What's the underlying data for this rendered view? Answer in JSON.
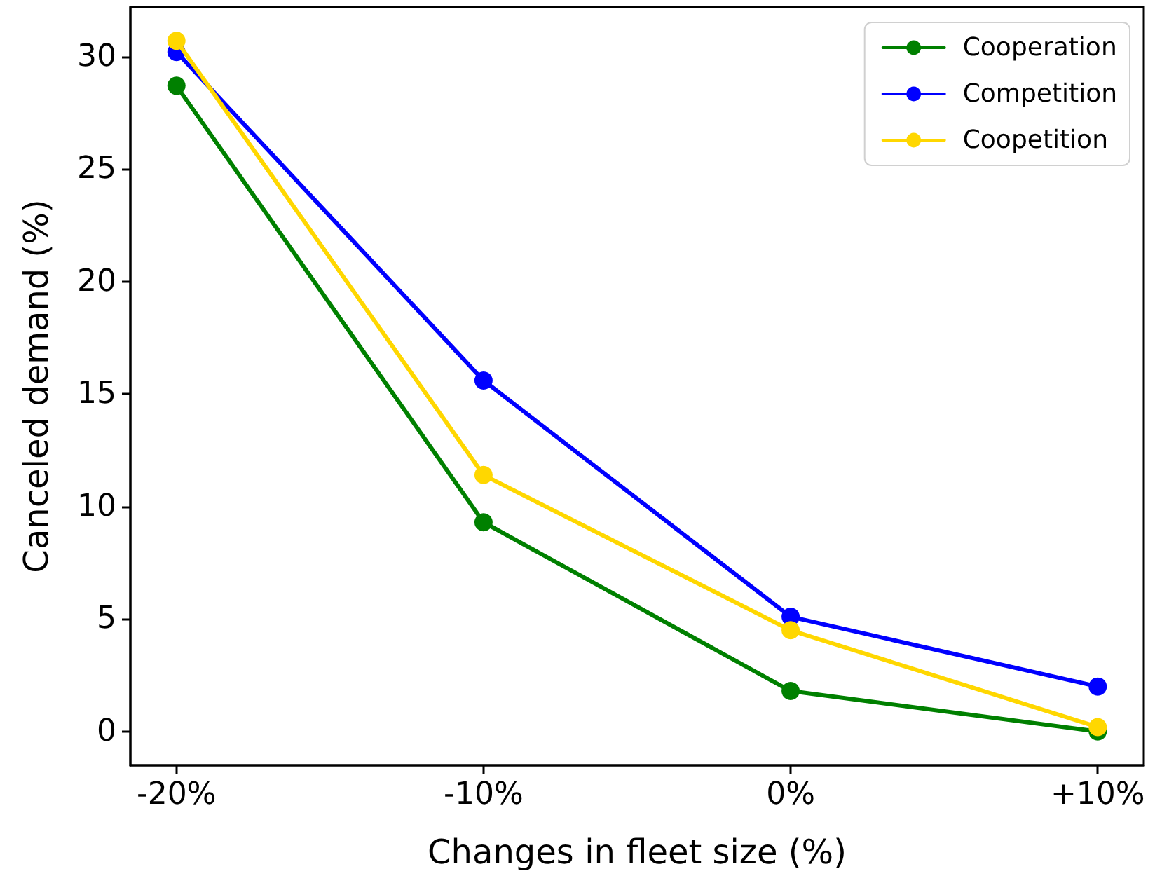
{
  "chart_data": {
    "type": "line",
    "xlabel": "Changes in fleet size (%)",
    "ylabel": "Canceled demand (%)",
    "categories": [
      "-20%",
      "-10%",
      "0%",
      "+10%"
    ],
    "series": [
      {
        "name": "Cooperation",
        "color": "#008000",
        "values": [
          28.7,
          9.3,
          1.8,
          0.0
        ]
      },
      {
        "name": "Competition",
        "color": "#0000ff",
        "values": [
          30.2,
          15.6,
          5.1,
          2.0
        ]
      },
      {
        "name": "Coopetition",
        "color": "#ffd700",
        "values": [
          30.7,
          11.4,
          4.5,
          0.2
        ]
      }
    ],
    "ylim": [
      -1.5,
      32.2
    ],
    "yticks": [
      0,
      5,
      10,
      15,
      20,
      25,
      30
    ],
    "grid": false,
    "legend": "top right",
    "marker": "circle",
    "line_style": "solid"
  }
}
